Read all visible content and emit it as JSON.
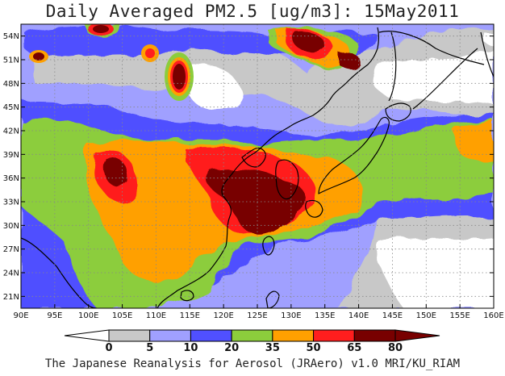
{
  "title": "Daily Averaged PM2.5 [ug/m3]: 15May2011",
  "footer": "The Japanese Reanalysis for Aerosol (JRAero) v1.0 MRI/KU_RIAM",
  "map": {
    "lon_range": [
      90,
      160
    ],
    "lat_range": [
      19.5,
      55.5
    ],
    "lon_ticks": [
      {
        "v": 90,
        "label": "90E"
      },
      {
        "v": 95,
        "label": "95E"
      },
      {
        "v": 100,
        "label": "100E"
      },
      {
        "v": 105,
        "label": "105E"
      },
      {
        "v": 110,
        "label": "110E"
      },
      {
        "v": 115,
        "label": "115E"
      },
      {
        "v": 120,
        "label": "120E"
      },
      {
        "v": 125,
        "label": "125E"
      },
      {
        "v": 130,
        "label": "130E"
      },
      {
        "v": 135,
        "label": "135E"
      },
      {
        "v": 140,
        "label": "140E"
      },
      {
        "v": 145,
        "label": "145E"
      },
      {
        "v": 150,
        "label": "150E"
      },
      {
        "v": 155,
        "label": "155E"
      },
      {
        "v": 160,
        "label": "160E"
      }
    ],
    "lat_ticks": [
      {
        "v": 21,
        "label": "21N"
      },
      {
        "v": 24,
        "label": "24N"
      },
      {
        "v": 27,
        "label": "27N"
      },
      {
        "v": 30,
        "label": "30N"
      },
      {
        "v": 33,
        "label": "33N"
      },
      {
        "v": 36,
        "label": "36N"
      },
      {
        "v": 39,
        "label": "39N"
      },
      {
        "v": 42,
        "label": "42N"
      },
      {
        "v": 45,
        "label": "45N"
      },
      {
        "v": 48,
        "label": "48N"
      },
      {
        "v": 51,
        "label": "51N"
      },
      {
        "v": 54,
        "label": "54N"
      }
    ],
    "grid": true
  },
  "legend": {
    "levels": [
      "0",
      "5",
      "10",
      "20",
      "35",
      "50",
      "65",
      "80"
    ],
    "colors": [
      "#ffffff",
      "#c8c8c8",
      "#a0a0ff",
      "#5050ff",
      "#8ccd3c",
      "#ffa000",
      "#ff1e1e",
      "#780000"
    ]
  }
}
